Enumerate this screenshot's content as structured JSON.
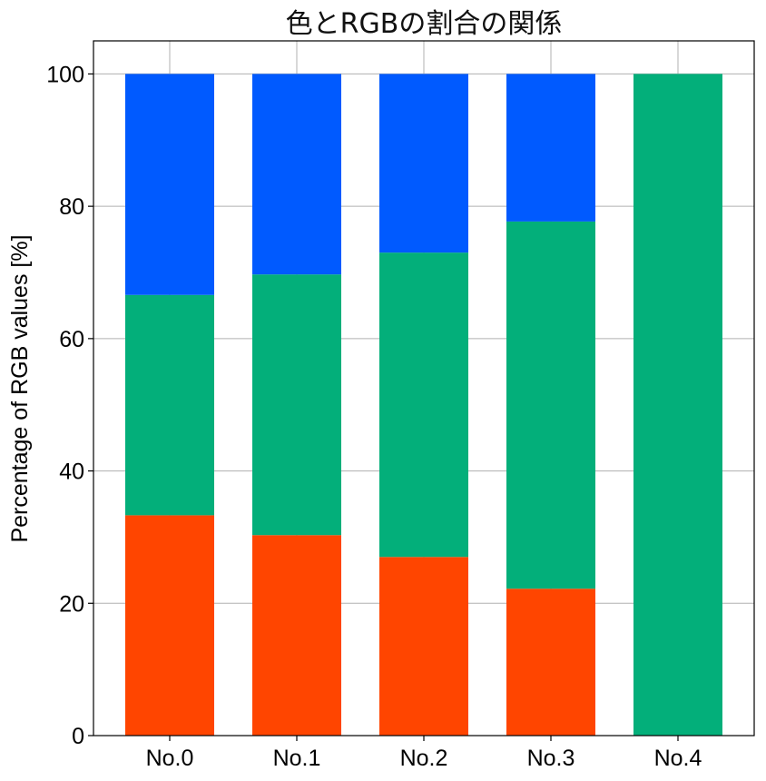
{
  "chart_data": {
    "type": "bar",
    "stacked": true,
    "title": "色とRGBの割合の関係",
    "xlabel": "",
    "ylabel": "Percentage of RGB values [%]",
    "categories": [
      "No.0",
      "No.1",
      "No.2",
      "No.3",
      "No.4"
    ],
    "ylim": [
      0,
      105
    ],
    "yticks": [
      0,
      20,
      40,
      60,
      80,
      100
    ],
    "grid": true,
    "series": [
      {
        "values": [
          33.3,
          30.3,
          27.0,
          22.2,
          0.0
        ],
        "color": "#ff4500"
      },
      {
        "values": [
          33.3,
          39.4,
          46.0,
          55.5,
          100.0
        ],
        "color": "#03af7a"
      },
      {
        "values": [
          33.4,
          30.3,
          27.0,
          22.3,
          0.0
        ],
        "color": "#005aff"
      }
    ]
  }
}
